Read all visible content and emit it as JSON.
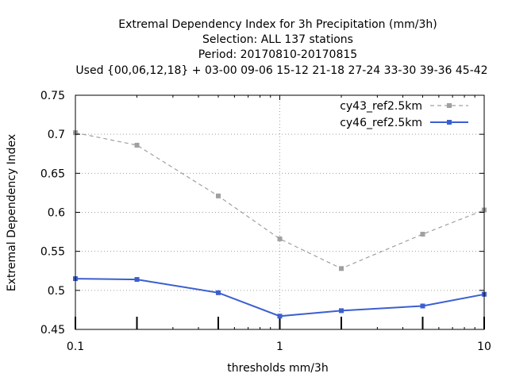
{
  "chart_data": {
    "type": "line",
    "title_lines": [
      "Extremal Dependency Index  for 3h Precipitation (mm/3h)",
      "Selection: ALL    137 stations",
      "Period: 20170810-20170815",
      "Used {00,06,12,18} + 03-00 09-06 15-12 21-18 27-24 33-30 39-36 45-42"
    ],
    "xlabel": "thresholds mm/3h",
    "ylabel": "Extremal Dependency Index",
    "x_scale": "log",
    "xlim": [
      0.1,
      10
    ],
    "ylim": [
      0.45,
      0.75
    ],
    "x_ticks": [
      0.1,
      1,
      10
    ],
    "x_tick_labels": [
      "0.1",
      "1",
      "10"
    ],
    "y_ticks": [
      0.45,
      0.5,
      0.55,
      0.6,
      0.65,
      0.7,
      0.75
    ],
    "y_tick_labels": [
      "0.45",
      "0.5",
      "0.55",
      "0.6",
      "0.65",
      "0.7",
      "0.75"
    ],
    "grid": true,
    "legend_position": "top-right",
    "x": [
      0.1,
      0.2,
      0.5,
      1,
      2,
      5,
      10
    ],
    "series": [
      {
        "name": "cy43_ref2.5km",
        "color": "#a0a0a0",
        "line_style": "dashed",
        "values": [
          0.702,
          0.686,
          0.621,
          0.566,
          0.528,
          0.572,
          0.603
        ]
      },
      {
        "name": "cy46_ref2.5km",
        "color": "#3b5fd0",
        "line_style": "solid",
        "values": [
          0.515,
          0.514,
          0.497,
          0.467,
          0.474,
          0.48,
          0.495
        ]
      }
    ],
    "station_count_bars": [
      {
        "x": 0.1
      },
      {
        "x": 0.2
      },
      {
        "x": 0.5
      },
      {
        "x": 1
      },
      {
        "x": 2
      },
      {
        "x": 5
      },
      {
        "x": 10
      }
    ]
  }
}
